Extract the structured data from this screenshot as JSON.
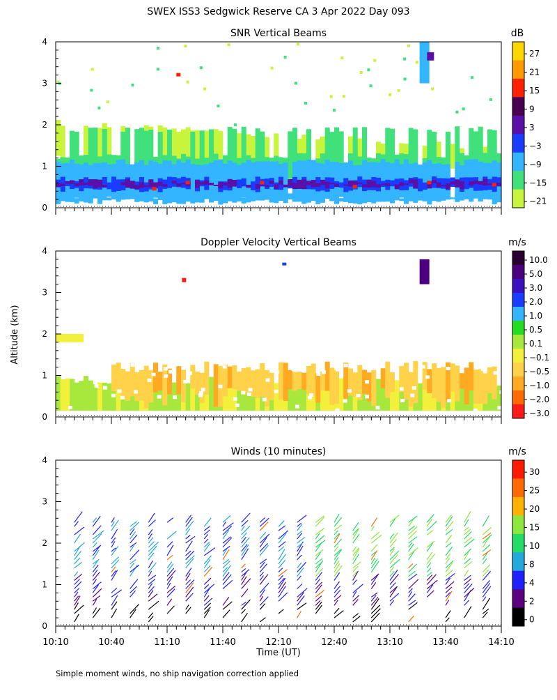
{
  "title": "SWEX ISS3 Sedgwick Reserve CA   3 Apr 2022 Day 093",
  "ylabel": "Altitude (km)",
  "xlabel": "Time (UT)",
  "footnote": "Simple moment winds, no ship navigation correction applied",
  "chart_data": [
    {
      "type": "heatmap",
      "title": "SNR Vertical Beams",
      "colorbar_title": "dB",
      "colorbar_ticks": [
        "27",
        "21",
        "15",
        "9",
        "3",
        "−3",
        "−9",
        "−15",
        "−21"
      ],
      "colorbar_colors": [
        "#ffd700",
        "#ff9900",
        "#ff2200",
        "#4a0050",
        "#5a10a8",
        "#1a3cff",
        "#33b5ff",
        "#40e07a",
        "#c8f53c"
      ],
      "ylim": [
        0,
        4
      ],
      "yticks": [
        "0",
        "1",
        "2",
        "3",
        "4"
      ],
      "xlim": [
        0,
        240
      ],
      "layers": [
        {
          "alt_range_km": [
            0.15,
            0.45
          ],
          "level": "−9 to −3"
        },
        {
          "alt_range_km": [
            0.45,
            0.65
          ],
          "level": "3 to 9"
        },
        {
          "alt_range_km": [
            0.65,
            1.2
          ],
          "level": "−15 to −9"
        },
        {
          "alt_range_km": [
            1.2,
            2.0
          ],
          "level": "−21 to −15"
        }
      ]
    },
    {
      "type": "heatmap",
      "title": "Doppler Velocity Vertical Beams",
      "colorbar_title": "m/s",
      "colorbar_ticks": [
        "10.0",
        "5.0",
        "3.0",
        "2.0",
        "1.0",
        "0.5",
        "0.1",
        "−0.1",
        "−0.5",
        "−1.0",
        "−2.0",
        "−3.0"
      ],
      "colorbar_colors": [
        "#2a0030",
        "#4a0080",
        "#3a10c0",
        "#1a3cff",
        "#33b5ff",
        "#22dd22",
        "#a8e83c",
        "#f2f03a",
        "#ffd24a",
        "#ffaa22",
        "#ff6a00",
        "#ff1a1a"
      ],
      "ylim": [
        0,
        4
      ],
      "yticks": [
        "0",
        "1",
        "2",
        "3",
        "4"
      ],
      "xlim": [
        0,
        240
      ],
      "layers": [
        {
          "alt_range_km": [
            0.15,
            0.9
          ],
          "level": "−0.1 to 0.5"
        },
        {
          "alt_range_km": [
            0.4,
            1.3
          ],
          "level": "−1.0 to −0.5"
        }
      ]
    },
    {
      "type": "scatter",
      "title": "Winds (10 minutes)",
      "colorbar_title": "m/s",
      "colorbar_ticks": [
        "30",
        "25",
        "20",
        "15",
        "10",
        "8",
        "4",
        "2",
        "0"
      ],
      "colorbar_colors": [
        "#ff1a00",
        "#ff6a00",
        "#ffb000",
        "#8ce83c",
        "#22dd66",
        "#22aadd",
        "#2020ff",
        "#5a0080",
        "#000000"
      ],
      "ylim": [
        0,
        4
      ],
      "yticks": [
        "0",
        "1",
        "2",
        "3",
        "4"
      ],
      "xlim": [
        0,
        240
      ],
      "x_ticks": [
        0,
        30,
        60,
        90,
        120,
        150,
        180,
        210,
        240
      ],
      "xtick_labels": [
        "10:10",
        "10:40",
        "11:10",
        "11:40",
        "12:10",
        "12:40",
        "13:10",
        "13:40",
        "14:10"
      ],
      "profile_times_min": [
        10,
        20,
        30,
        40,
        50,
        60,
        70,
        80,
        90,
        100,
        110,
        120,
        130,
        140,
        150,
        160,
        170,
        180,
        190,
        200,
        210,
        220,
        230
      ]
    }
  ]
}
